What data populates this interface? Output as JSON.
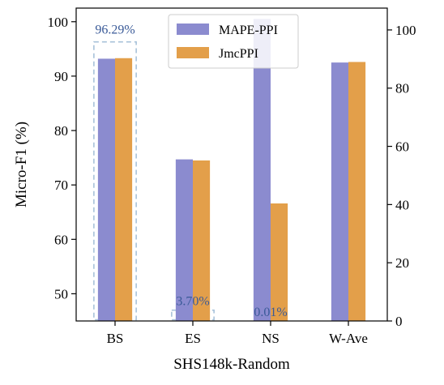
{
  "chart_data": {
    "type": "bar",
    "xlabel": "SHS148k-Random",
    "ylabel": "Micro-F1 (%)",
    "categories": [
      "BS",
      "ES",
      "NS",
      "W-Ave"
    ],
    "left_axis": {
      "ylim": [
        45,
        102.5
      ],
      "ticks": [
        50,
        60,
        70,
        80,
        90,
        100
      ]
    },
    "right_axis": {
      "ylim": [
        0,
        107.5
      ],
      "ticks": [
        0,
        20,
        40,
        60,
        80,
        100
      ]
    },
    "series": [
      {
        "name": "MAPE-PPI",
        "color": "#8b8bcf",
        "values": [
          93.2,
          74.7,
          100.5,
          92.5
        ]
      },
      {
        "name": "JmcPPI",
        "color": "#e39f4a",
        "values": [
          93.3,
          74.5,
          66.6,
          92.6
        ]
      }
    ],
    "annotations": [
      {
        "text": "96.29%",
        "category": "BS",
        "box_top": 96.29,
        "box_axis": "left"
      },
      {
        "text": "3.70%",
        "category": "ES",
        "box_top": 3.7,
        "box_axis": "right"
      },
      {
        "text": "0.01%",
        "category": "NS",
        "box_top": 0.01,
        "box_axis": "right"
      }
    ],
    "legend_position": "top-center",
    "grid": false
  }
}
